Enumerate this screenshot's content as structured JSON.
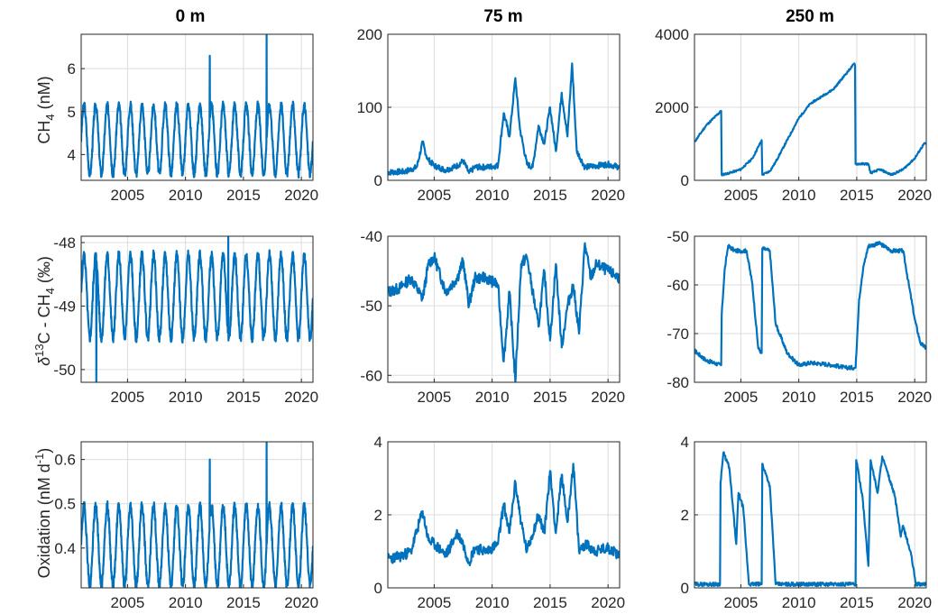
{
  "figure": {
    "column_titles": [
      "0 m",
      "75 m",
      "250 m"
    ],
    "row_ylabels": [
      {
        "main": "CH",
        "sub": "4",
        "unit": " (nM)"
      },
      {
        "delta": "δ",
        "sup": "13",
        "mid": "C - CH",
        "sub": "4",
        "unit": " (‰)"
      },
      {
        "main": "Oxidation (nM d",
        "sup": "-1",
        "tail": ")"
      }
    ]
  },
  "chart_data": [
    {
      "type": "line",
      "row": 0,
      "col": 0,
      "title": "0 m",
      "xlim": [
        2001,
        2021
      ],
      "ylim": [
        3.4,
        6.8
      ],
      "xticks": [
        2005,
        2010,
        2015,
        2020
      ],
      "yticks": [
        4,
        5,
        6
      ],
      "series": [
        {
          "kind": "seasonal",
          "base": 4.35,
          "amp": 0.8,
          "spikes": [
            [
              2012.1,
              6.3
            ],
            [
              2017.0,
              6.8
            ]
          ],
          "seed": 3
        }
      ]
    },
    {
      "type": "line",
      "row": 0,
      "col": 1,
      "title": "75 m",
      "xlim": [
        2001,
        2021
      ],
      "ylim": [
        0,
        200
      ],
      "xticks": [
        2005,
        2010,
        2015,
        2020
      ],
      "yticks": [
        0,
        100,
        200
      ],
      "series": [
        {
          "kind": "points",
          "noise": 4,
          "seed": 7,
          "points": [
            [
              2001,
              11
            ],
            [
              2002.5,
              12
            ],
            [
              2003.5,
              18
            ],
            [
              2004,
              52
            ],
            [
              2004.4,
              30
            ],
            [
              2005,
              20
            ],
            [
              2006,
              14
            ],
            [
              2007,
              20
            ],
            [
              2007.5,
              27
            ],
            [
              2008,
              10
            ],
            [
              2008.5,
              18
            ],
            [
              2009.5,
              18
            ],
            [
              2010.5,
              20
            ],
            [
              2011,
              92
            ],
            [
              2011.5,
              60
            ],
            [
              2012,
              140
            ],
            [
              2012.4,
              70
            ],
            [
              2013,
              22
            ],
            [
              2013.5,
              18
            ],
            [
              2014,
              75
            ],
            [
              2014.5,
              50
            ],
            [
              2015,
              100
            ],
            [
              2015.5,
              40
            ],
            [
              2016,
              120
            ],
            [
              2016.5,
              60
            ],
            [
              2016.9,
              160
            ],
            [
              2017.3,
              40
            ],
            [
              2018,
              18
            ],
            [
              2019,
              20
            ],
            [
              2020,
              22
            ],
            [
              2021,
              18
            ]
          ]
        }
      ]
    },
    {
      "type": "line",
      "row": 0,
      "col": 2,
      "title": "250 m",
      "xlim": [
        2001,
        2021
      ],
      "ylim": [
        0,
        4000
      ],
      "xticks": [
        2005,
        2010,
        2015,
        2020
      ],
      "yticks": [
        0,
        2000,
        4000
      ],
      "series": [
        {
          "kind": "points",
          "noise": 25,
          "seed": 11,
          "points": [
            [
              2001,
              1050
            ],
            [
              2002,
              1500
            ],
            [
              2003.3,
              1900
            ],
            [
              2003.35,
              150
            ],
            [
              2004,
              200
            ],
            [
              2005,
              300
            ],
            [
              2006,
              600
            ],
            [
              2006.8,
              1100
            ],
            [
              2006.85,
              150
            ],
            [
              2007.5,
              250
            ],
            [
              2008,
              500
            ],
            [
              2010,
              1700
            ],
            [
              2011,
              2100
            ],
            [
              2013,
              2500
            ],
            [
              2014.8,
              3200
            ],
            [
              2014.85,
              3150
            ],
            [
              2014.9,
              450
            ],
            [
              2016,
              450
            ],
            [
              2016.2,
              200
            ],
            [
              2017,
              300
            ],
            [
              2018,
              150
            ],
            [
              2019,
              300
            ],
            [
              2020,
              600
            ],
            [
              2020.8,
              1000
            ],
            [
              2021,
              1000
            ]
          ]
        }
      ]
    },
    {
      "type": "line",
      "row": 1,
      "col": 0,
      "title": "",
      "xlim": [
        2001,
        2021
      ],
      "ylim": [
        -50.2,
        -47.9
      ],
      "xticks": [
        2005,
        2010,
        2015,
        2020
      ],
      "yticks": [
        -50,
        -49,
        -48
      ],
      "series": [
        {
          "kind": "seasonal",
          "base": -48.85,
          "amp": 0.65,
          "spikes": [
            [
              2002.3,
              -50.2
            ],
            [
              2013.7,
              -47.9
            ]
          ],
          "seed": 5
        }
      ]
    },
    {
      "type": "line",
      "row": 1,
      "col": 1,
      "title": "",
      "xlim": [
        2001,
        2021
      ],
      "ylim": [
        -61,
        -40
      ],
      "xticks": [
        2005,
        2010,
        2015,
        2020
      ],
      "yticks": [
        -60,
        -50,
        -40
      ],
      "series": [
        {
          "kind": "points",
          "noise": 0.8,
          "seed": 13,
          "points": [
            [
              2001,
              -48
            ],
            [
              2002,
              -47.5
            ],
            [
              2003,
              -46
            ],
            [
              2004,
              -49
            ],
            [
              2004.5,
              -44
            ],
            [
              2005,
              -43
            ],
            [
              2006,
              -48
            ],
            [
              2007,
              -46
            ],
            [
              2007.5,
              -43.5
            ],
            [
              2008,
              -50
            ],
            [
              2008.5,
              -46
            ],
            [
              2009.5,
              -46
            ],
            [
              2010.5,
              -47
            ],
            [
              2011,
              -58
            ],
            [
              2011.5,
              -48
            ],
            [
              2012,
              -61
            ],
            [
              2012.5,
              -44
            ],
            [
              2013,
              -43
            ],
            [
              2013.5,
              -48
            ],
            [
              2014,
              -53
            ],
            [
              2014.5,
              -45
            ],
            [
              2015,
              -55
            ],
            [
              2015.5,
              -44
            ],
            [
              2016,
              -56
            ],
            [
              2016.5,
              -50
            ],
            [
              2017,
              -47
            ],
            [
              2017.5,
              -54
            ],
            [
              2018,
              -41
            ],
            [
              2018.5,
              -46
            ],
            [
              2019,
              -44
            ],
            [
              2020,
              -45
            ],
            [
              2021,
              -46
            ]
          ]
        }
      ]
    },
    {
      "type": "line",
      "row": 1,
      "col": 2,
      "title": "",
      "xlim": [
        2001,
        2021
      ],
      "ylim": [
        -80,
        -50
      ],
      "xticks": [
        2005,
        2010,
        2015,
        2020
      ],
      "yticks": [
        -80,
        -70,
        -60,
        -50
      ],
      "series": [
        {
          "kind": "points",
          "noise": 0.4,
          "seed": 17,
          "points": [
            [
              2001,
              -73.5
            ],
            [
              2002,
              -75.5
            ],
            [
              2003.3,
              -76.5
            ],
            [
              2003.35,
              -66
            ],
            [
              2003.6,
              -57
            ],
            [
              2003.9,
              -52
            ],
            [
              2004.5,
              -53
            ],
            [
              2005.5,
              -53
            ],
            [
              2006,
              -60
            ],
            [
              2006.5,
              -73
            ],
            [
              2006.8,
              -74
            ],
            [
              2006.85,
              -52.5
            ],
            [
              2007.5,
              -53
            ],
            [
              2008,
              -68
            ],
            [
              2009,
              -74
            ],
            [
              2010,
              -76.5
            ],
            [
              2011,
              -76
            ],
            [
              2012,
              -76.2
            ],
            [
              2013,
              -76.5
            ],
            [
              2014,
              -77
            ],
            [
              2014.9,
              -77
            ],
            [
              2015.2,
              -63
            ],
            [
              2015.6,
              -56
            ],
            [
              2016,
              -52
            ],
            [
              2017,
              -51.5
            ],
            [
              2018,
              -53
            ],
            [
              2019,
              -53
            ],
            [
              2019.5,
              -60
            ],
            [
              2020,
              -67
            ],
            [
              2020.5,
              -72
            ],
            [
              2021,
              -73
            ]
          ]
        }
      ]
    },
    {
      "type": "line",
      "row": 2,
      "col": 0,
      "title": "",
      "xlim": [
        2001,
        2021
      ],
      "ylim": [
        0.31,
        0.64
      ],
      "xticks": [
        2005,
        2010,
        2015,
        2020
      ],
      "yticks": [
        0.4,
        0.5,
        0.6
      ],
      "series": [
        {
          "kind": "seasonal",
          "base": 0.405,
          "amp": 0.09,
          "spikes": [
            [
              2012.1,
              0.6
            ],
            [
              2017.0,
              0.64
            ]
          ],
          "seed": 19
        }
      ]
    },
    {
      "type": "line",
      "row": 2,
      "col": 1,
      "title": "",
      "xlim": [
        2001,
        2021
      ],
      "ylim": [
        0,
        4
      ],
      "xticks": [
        2005,
        2010,
        2015,
        2020
      ],
      "yticks": [
        0,
        2,
        4
      ],
      "series": [
        {
          "kind": "points",
          "noise": 0.15,
          "seed": 23,
          "points": [
            [
              2001,
              0.8
            ],
            [
              2002,
              0.85
            ],
            [
              2003,
              1.0
            ],
            [
              2004,
              2.1
            ],
            [
              2004.5,
              1.3
            ],
            [
              2005,
              1.2
            ],
            [
              2006,
              0.9
            ],
            [
              2007,
              1.5
            ],
            [
              2007.5,
              1.2
            ],
            [
              2008,
              0.7
            ],
            [
              2008.5,
              1.1
            ],
            [
              2009.5,
              1.0
            ],
            [
              2010.5,
              1.2
            ],
            [
              2011,
              2.3
            ],
            [
              2011.5,
              1.5
            ],
            [
              2012,
              2.9
            ],
            [
              2012.5,
              1.8
            ],
            [
              2013,
              1.0
            ],
            [
              2014,
              2.0
            ],
            [
              2014.5,
              1.5
            ],
            [
              2015,
              3.2
            ],
            [
              2015.5,
              1.5
            ],
            [
              2016,
              3.1
            ],
            [
              2016.5,
              1.8
            ],
            [
              2017,
              3.4
            ],
            [
              2017.5,
              1.0
            ],
            [
              2018,
              1.2
            ],
            [
              2019,
              1.0
            ],
            [
              2020,
              1.1
            ],
            [
              2021,
              0.9
            ]
          ]
        }
      ]
    },
    {
      "type": "line",
      "row": 2,
      "col": 2,
      "title": "",
      "xlim": [
        2001,
        2021
      ],
      "ylim": [
        0,
        4
      ],
      "xticks": [
        2005,
        2010,
        2015,
        2020
      ],
      "yticks": [
        0,
        2,
        4
      ],
      "series": [
        {
          "kind": "points",
          "noise": 0.05,
          "seed": 29,
          "points": [
            [
              2001,
              0.1
            ],
            [
              2003.2,
              0.1
            ],
            [
              2003.25,
              2.9
            ],
            [
              2003.5,
              3.7
            ],
            [
              2004,
              3.3
            ],
            [
              2004.6,
              1.2
            ],
            [
              2004.8,
              2.6
            ],
            [
              2005.2,
              2.2
            ],
            [
              2005.7,
              0.1
            ],
            [
              2006.8,
              0.1
            ],
            [
              2006.85,
              3.4
            ],
            [
              2007.5,
              2.8
            ],
            [
              2008,
              0.1
            ],
            [
              2014.9,
              0.1
            ],
            [
              2014.95,
              3.5
            ],
            [
              2015.5,
              2.5
            ],
            [
              2016,
              0.6
            ],
            [
              2016.2,
              3.5
            ],
            [
              2016.8,
              2.6
            ],
            [
              2017.2,
              3.6
            ],
            [
              2018.3,
              2.5
            ],
            [
              2018.8,
              1.4
            ],
            [
              2019,
              1.7
            ],
            [
              2019.7,
              0.9
            ],
            [
              2020.1,
              0.1
            ],
            [
              2021,
              0.1
            ]
          ]
        }
      ]
    }
  ]
}
